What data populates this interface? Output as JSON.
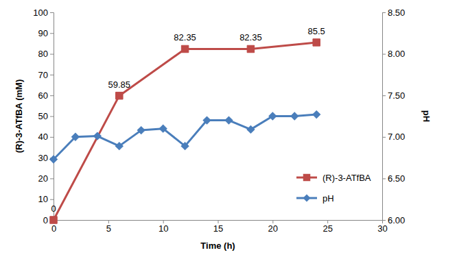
{
  "chart_data": {
    "type": "line",
    "x_label": "Time (h)",
    "y_label": "(R)-3-ATfBA (mM)",
    "y2_label": "pH",
    "xlim": [
      0,
      30
    ],
    "xticks": [
      0,
      5,
      10,
      15,
      20,
      25,
      30
    ],
    "ylim": [
      0,
      100
    ],
    "yticks": [
      0,
      10,
      20,
      30,
      40,
      50,
      60,
      70,
      80,
      90,
      100
    ],
    "y2lim": [
      6,
      8.5
    ],
    "y2ticks": [
      {
        "value": 6,
        "label": "6.00"
      },
      {
        "value": 6.5,
        "label": "6.50"
      },
      {
        "value": 7,
        "label": "7.00"
      },
      {
        "value": 7.5,
        "label": "7.50"
      },
      {
        "value": 8,
        "label": "8.00"
      },
      {
        "value": 8.5,
        "label": "8.50"
      }
    ],
    "grid": false,
    "legend": "lower right",
    "series": [
      {
        "name": "(R)-3-ATfBA",
        "color": "#be4b48",
        "marker": "square",
        "data_labels": true,
        "x": [
          0,
          6,
          12,
          18,
          24
        ],
        "values": [
          0,
          59.85,
          82.35,
          82.35,
          85.5
        ]
      },
      {
        "name": "pH",
        "color": "#4a7ebb",
        "marker": "diamond",
        "axis": "y2",
        "x": [
          0,
          2,
          4,
          6,
          8,
          10,
          12,
          14,
          16,
          18,
          20,
          22,
          24
        ],
        "values": [
          6.73,
          7.0,
          7.01,
          6.89,
          7.08,
          7.1,
          6.89,
          7.2,
          7.2,
          7.09,
          7.25,
          7.25,
          7.27
        ]
      }
    ]
  }
}
